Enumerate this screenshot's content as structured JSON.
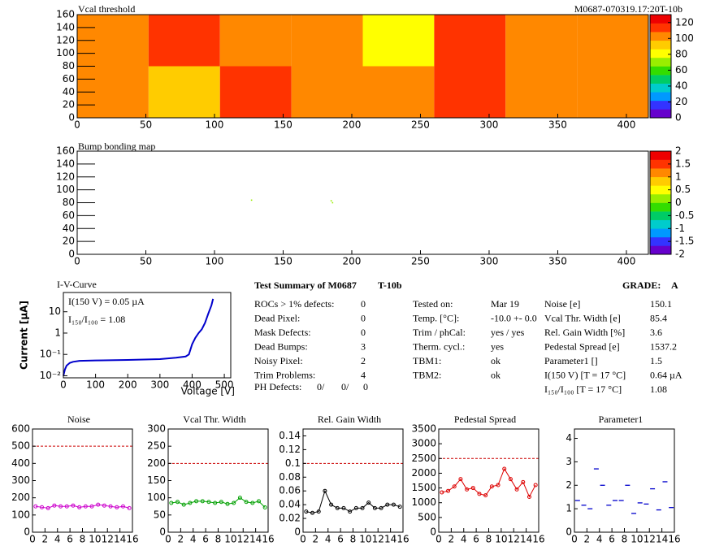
{
  "header": {
    "module_id": "M0687-070319.17:20T-10b"
  },
  "chart_data": [
    {
      "type": "heatmap",
      "title": "Vcal threshold",
      "xlim": [
        0,
        416
      ],
      "xticks": [
        0,
        50,
        100,
        150,
        200,
        250,
        300,
        350,
        400
      ],
      "ylim": [
        0,
        160
      ],
      "yticks": [
        0,
        20,
        40,
        60,
        80,
        100,
        120,
        140,
        160
      ],
      "z": [
        [
          100,
          88,
          110,
          100,
          100,
          112,
          100,
          98
        ],
        [
          108,
          110,
          100,
          102,
          85,
          110,
          100,
          105
        ]
      ],
      "zlim": [
        0,
        130
      ],
      "zticks": [
        0,
        20,
        40,
        60,
        80,
        100,
        120
      ],
      "palette": [
        "#6600cc",
        "#3333ff",
        "#0099ff",
        "#00cccc",
        "#00cc66",
        "#33dd00",
        "#99ee00",
        "#ffff00",
        "#ffcc00",
        "#ff8800",
        "#ff3300",
        "#ee0000"
      ]
    },
    {
      "type": "heatmap",
      "title": "Bump bonding map",
      "xlim": [
        0,
        416
      ],
      "xticks": [
        0,
        50,
        100,
        150,
        200,
        250,
        300,
        350,
        400
      ],
      "ylim": [
        0,
        160
      ],
      "yticks": [
        0,
        20,
        40,
        60,
        80,
        100,
        120,
        140,
        160
      ],
      "points_x": [
        127,
        185,
        186
      ],
      "points_y": [
        84,
        83,
        80
      ],
      "points_z": [
        0,
        0,
        0.3
      ],
      "zlim": [
        -2,
        2
      ],
      "zticks": [
        -2,
        -1.5,
        -1,
        -0.5,
        0,
        0.5,
        1,
        1.5,
        2
      ],
      "palette": [
        "#6600cc",
        "#3333ff",
        "#0099ff",
        "#00cccc",
        "#00cc66",
        "#33dd00",
        "#99ee00",
        "#ffff00",
        "#ffcc00",
        "#ff8800",
        "#ff3300",
        "#ee0000"
      ]
    },
    {
      "type": "line",
      "title": "I-V-Curve",
      "ylog": true,
      "color": "#0000cc",
      "x_label": "Voltage [V]",
      "y_label": "Current [µA]",
      "annotations": [
        "I(150 V) = 0.05 µA",
        "I₁₅₀/I₁₀₀ =  1.08"
      ],
      "x": [
        0,
        5,
        10,
        20,
        30,
        50,
        100,
        200,
        300,
        350,
        380,
        390,
        400,
        410,
        420,
        430,
        440,
        450,
        460,
        465
      ],
      "values": [
        0.01,
        0.02,
        0.03,
        0.04,
        0.045,
        0.05,
        0.052,
        0.055,
        0.06,
        0.07,
        0.08,
        0.1,
        0.3,
        0.6,
        1,
        1.5,
        3,
        8,
        20,
        40
      ],
      "xlim": [
        0,
        520
      ],
      "xticks": [
        0,
        100,
        200,
        300,
        400,
        500
      ],
      "ylim": [
        0.008,
        80
      ],
      "yticks": [
        {
          "value": 0.01,
          "label": "10⁻²"
        },
        {
          "value": 0.1,
          "label": "10⁻¹"
        },
        1,
        10
      ]
    },
    {
      "type": "line",
      "title": "Noise",
      "color": "#cc00cc",
      "threshold": 500,
      "x": [
        0.5,
        1.5,
        2.5,
        3.5,
        4.5,
        5.5,
        6.5,
        7.5,
        8.5,
        9.5,
        10.5,
        11.5,
        12.5,
        13.5,
        14.5,
        15.5
      ],
      "values": [
        150,
        145,
        140,
        155,
        150,
        150,
        155,
        145,
        150,
        150,
        160,
        155,
        150,
        145,
        150,
        140
      ],
      "xlim": [
        0,
        16
      ],
      "xticks": [
        0,
        2,
        4,
        6,
        8,
        10,
        12,
        14,
        16
      ],
      "ylim": [
        0,
        600
      ],
      "yticks": [
        0,
        100,
        200,
        300,
        400,
        500,
        600
      ]
    },
    {
      "type": "line",
      "title": "Vcal Thr. Width",
      "color": "#00a000",
      "threshold": 200,
      "x": [
        0.5,
        1.5,
        2.5,
        3.5,
        4.5,
        5.5,
        6.5,
        7.5,
        8.5,
        9.5,
        10.5,
        11.5,
        12.5,
        13.5,
        14.5,
        15.5
      ],
      "values": [
        85,
        88,
        80,
        85,
        90,
        90,
        88,
        85,
        88,
        82,
        85,
        100,
        88,
        85,
        90,
        72
      ],
      "xlim": [
        0,
        16
      ],
      "xticks": [
        0,
        2,
        4,
        6,
        8,
        10,
        12,
        14,
        16
      ],
      "ylim": [
        0,
        300
      ],
      "yticks": [
        0,
        50,
        100,
        150,
        200,
        250,
        300
      ]
    },
    {
      "type": "line",
      "title": "Rel. Gain Width",
      "color": "#000000",
      "threshold": 0.1,
      "x": [
        0.5,
        1.5,
        2.5,
        3.5,
        4.5,
        5.5,
        6.5,
        7.5,
        8.5,
        9.5,
        10.5,
        11.5,
        12.5,
        13.5,
        14.5,
        15.5
      ],
      "values": [
        0.03,
        0.028,
        0.03,
        0.06,
        0.04,
        0.035,
        0.035,
        0.03,
        0.035,
        0.035,
        0.043,
        0.035,
        0.035,
        0.04,
        0.04,
        0.037
      ],
      "xlim": [
        0,
        16
      ],
      "xticks": [
        0,
        2,
        4,
        6,
        8,
        10,
        12,
        14,
        16
      ],
      "ylim": [
        0,
        0.15
      ],
      "yticks": [
        0,
        0.02,
        0.04,
        0.06,
        0.08,
        0.1,
        0.12,
        0.14
      ]
    },
    {
      "type": "line",
      "title": "Pedestal Spread",
      "color": "#dd0000",
      "threshold": 2500,
      "x": [
        0.5,
        1.5,
        2.5,
        3.5,
        4.5,
        5.5,
        6.5,
        7.5,
        8.5,
        9.5,
        10.5,
        11.5,
        12.5,
        13.5,
        14.5,
        15.5
      ],
      "values": [
        1350,
        1400,
        1550,
        1800,
        1450,
        1500,
        1300,
        1250,
        1550,
        1600,
        2150,
        1800,
        1450,
        1700,
        1200,
        1600
      ],
      "xlim": [
        0,
        16
      ],
      "xticks": [
        0,
        2,
        4,
        6,
        8,
        10,
        12,
        14,
        16
      ],
      "ylim": [
        0,
        3500
      ],
      "yticks": [
        0,
        500,
        1000,
        1500,
        2000,
        2500,
        3000,
        3500
      ]
    },
    {
      "type": "scatter",
      "title": "Parameter1",
      "color": "#0000cc",
      "x": [
        0.5,
        1.5,
        2.5,
        3.5,
        4.5,
        5.5,
        6.5,
        7.5,
        8.5,
        9.5,
        10.5,
        11.5,
        12.5,
        13.5,
        14.5,
        15.5
      ],
      "values": [
        1.35,
        1.15,
        1.0,
        2.7,
        2.0,
        1.15,
        1.35,
        1.35,
        2.0,
        0.8,
        1.25,
        1.2,
        1.85,
        0.95,
        2.15,
        1.05
      ],
      "xlim": [
        0,
        16
      ],
      "xticks": [
        0,
        2,
        4,
        6,
        8,
        10,
        12,
        14,
        16
      ],
      "ylim": [
        0,
        4.4
      ],
      "yticks": [
        0,
        1,
        2,
        3,
        4
      ]
    }
  ],
  "summary": {
    "title": "Test Summary of M0687",
    "module_type": "T-10b",
    "grade_label": "GRADE:",
    "grade": "A",
    "left": [
      [
        "ROCs > 1% defects:",
        "0"
      ],
      [
        "Dead Pixel:",
        "0"
      ],
      [
        "Mask Defects:",
        "0"
      ],
      [
        "Dead Bumps:",
        "3"
      ],
      [
        "Noisy Pixel:",
        "2"
      ],
      [
        "Trim Problems:",
        "4"
      ]
    ],
    "ph_defects": {
      "label": "PH Defects:",
      "values": [
        "0/",
        "0/",
        "0"
      ]
    },
    "middle": [
      [
        "Tested on:",
        "Mar 19"
      ],
      [
        "Temp. [°C]:",
        "-10.0 +- 0.0"
      ],
      [
        "Trim / phCal:",
        "yes / yes"
      ],
      [
        "Therm. cycl.:",
        "yes"
      ],
      [
        "TBM1:",
        "ok"
      ],
      [
        "TBM2:",
        "ok"
      ]
    ],
    "right": [
      [
        "Noise [e]",
        "150.1"
      ],
      [
        "Vcal Thr. Width [e]",
        "85.4"
      ],
      [
        "Rel. Gain Width [%]",
        "3.6"
      ],
      [
        "Pedestal Spread [e]",
        "1537.2"
      ],
      [
        "Parameter1 []",
        "1.5"
      ],
      [
        "I(150 V) [T = 17 °C]",
        "0.64 µA"
      ],
      [
        "I₁₅₀/I₁₀₀ [T = 17 °C]",
        "1.08"
      ]
    ]
  }
}
